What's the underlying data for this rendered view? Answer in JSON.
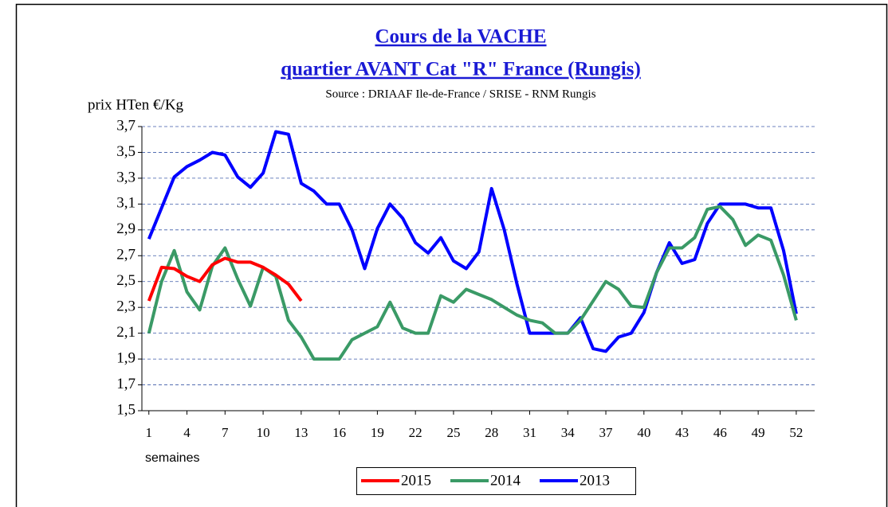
{
  "chart_data": {
    "type": "line",
    "title": "Cours de la VACHE",
    "subtitle": "quartier AVANT Cat \"R\" France (Rungis)",
    "source": "Source : DRIAAF Ile-de-France / SRISE - RNM Rungis",
    "y_label": "prix HTen  €/Kg",
    "x_label": "semaines",
    "categories": [
      1,
      null,
      null,
      4,
      null,
      null,
      7,
      null,
      null,
      10,
      null,
      null,
      13,
      null,
      null,
      16,
      null,
      null,
      19,
      null,
      null,
      22,
      null,
      null,
      25,
      null,
      null,
      28,
      null,
      null,
      31,
      null,
      null,
      34,
      null,
      null,
      37,
      null,
      null,
      40,
      null,
      null,
      43,
      null,
      null,
      46,
      null,
      null,
      49,
      null,
      null,
      52
    ],
    "ylim": [
      1.5,
      3.7
    ],
    "yticks": [
      {
        "value": 1.5,
        "label": "1,5"
      },
      {
        "value": 1.7,
        "label": "1,7"
      },
      {
        "value": 1.9,
        "label": "1,9"
      },
      {
        "value": 2.1,
        "label": "2,1"
      },
      {
        "value": 2.3,
        "label": "2,3"
      },
      {
        "value": 2.5,
        "label": "2,5"
      },
      {
        "value": 2.7,
        "label": "2,7"
      },
      {
        "value": 2.9,
        "label": "2,9"
      },
      {
        "value": 3.1,
        "label": "3,1"
      },
      {
        "value": 3.3,
        "label": "3,3"
      },
      {
        "value": 3.5,
        "label": "3,5"
      },
      {
        "value": 3.7,
        "label": "3,7"
      }
    ],
    "grid": true,
    "legend": "bottom",
    "series": [
      {
        "name": "2015",
        "color": "#ff0000",
        "values": [
          2.35,
          2.61,
          2.6,
          2.54,
          2.5,
          2.63,
          2.68,
          2.65,
          2.65,
          2.61,
          2.55,
          2.48,
          2.35,
          null,
          null,
          null,
          null,
          null,
          null,
          null,
          null,
          null,
          null,
          null,
          null,
          null,
          null,
          null,
          null,
          null,
          null,
          null,
          null,
          null,
          null,
          null,
          null,
          null,
          null,
          null,
          null,
          null,
          null,
          null,
          null,
          null,
          null,
          null,
          null,
          null,
          null,
          null
        ]
      },
      {
        "name": "2014",
        "color": "#3a9a66",
        "values": [
          2.1,
          2.5,
          2.74,
          2.42,
          2.28,
          2.62,
          2.76,
          2.52,
          2.31,
          2.61,
          2.54,
          2.2,
          2.07,
          1.9,
          1.9,
          1.9,
          2.05,
          2.1,
          2.15,
          2.34,
          2.14,
          2.1,
          2.1,
          2.39,
          2.34,
          2.44,
          2.4,
          2.36,
          2.3,
          2.24,
          2.2,
          2.18,
          2.1,
          2.1,
          2.2,
          2.35,
          2.5,
          2.44,
          2.31,
          2.3,
          2.57,
          2.76,
          2.76,
          2.84,
          3.06,
          3.08,
          2.98,
          2.78,
          2.86,
          2.82,
          2.55,
          2.2
        ]
      },
      {
        "name": "2013",
        "color": "#0000ff",
        "values": [
          2.83,
          3.07,
          3.31,
          3.39,
          3.44,
          3.5,
          3.48,
          3.31,
          3.23,
          3.34,
          3.66,
          3.64,
          3.26,
          3.2,
          3.1,
          3.1,
          2.9,
          2.6,
          2.91,
          3.1,
          2.99,
          2.8,
          2.72,
          2.84,
          2.66,
          2.6,
          2.73,
          3.22,
          2.9,
          2.48,
          2.1,
          2.1,
          2.1,
          2.1,
          2.22,
          1.98,
          1.96,
          2.07,
          2.1,
          2.26,
          2.57,
          2.8,
          2.64,
          2.67,
          2.95,
          3.1,
          3.1,
          3.1,
          3.07,
          3.07,
          2.74,
          2.25
        ]
      }
    ]
  }
}
